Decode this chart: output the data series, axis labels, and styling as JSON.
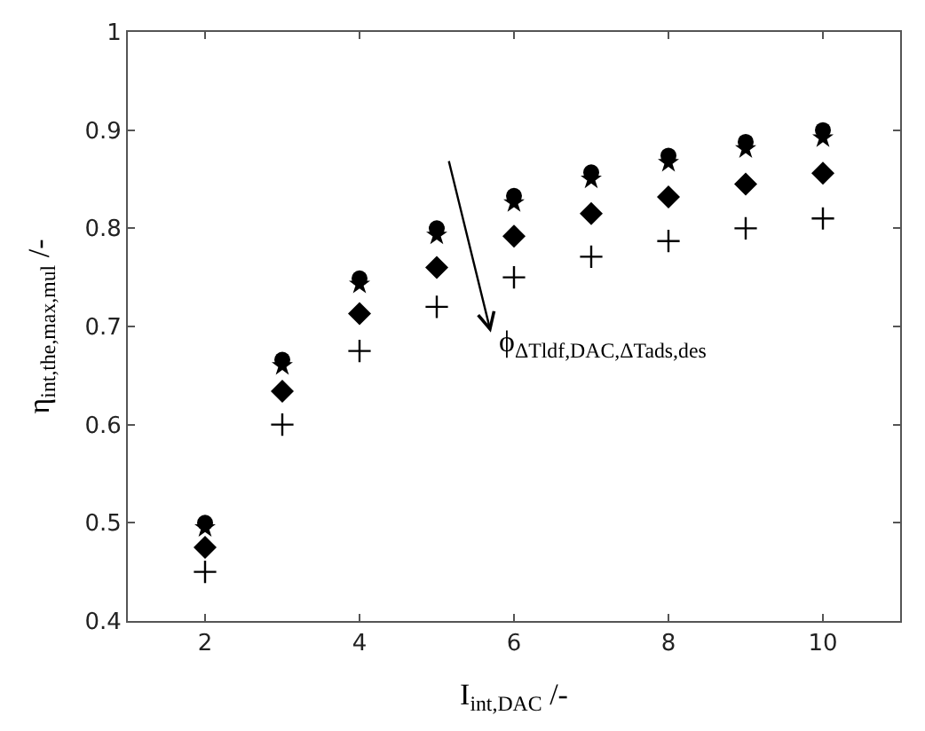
{
  "chart_data": {
    "type": "scatter",
    "xlabel": "I$_{int,DAC}$ /-",
    "ylabel": "η$_{int,the,max,mul}$ /-",
    "x": [
      2,
      3,
      4,
      5,
      6,
      7,
      8,
      9,
      10
    ],
    "xlim": [
      1,
      11
    ],
    "xticks": [
      2,
      4,
      6,
      8,
      10
    ],
    "ylim": [
      0.4,
      1
    ],
    "yticks": [
      0.4,
      0.5,
      0.6,
      0.7,
      0.8,
      0.9,
      1
    ],
    "annotations": [
      "ϕ$_{ΔTldf,DAC,ΔTads,des}$"
    ],
    "series": [
      {
        "color": "#000000",
        "marker": "circle",
        "values": [
          0.5,
          0.666,
          0.749,
          0.8,
          0.833,
          0.857,
          0.874,
          0.888,
          0.9
        ]
      },
      {
        "color": "#000000",
        "marker": "star",
        "values": [
          0.495,
          0.66,
          0.743,
          0.793,
          0.826,
          0.85,
          0.867,
          0.881,
          0.892
        ]
      },
      {
        "color": "#000000",
        "marker": "diamond",
        "values": [
          0.475,
          0.634,
          0.713,
          0.76,
          0.792,
          0.815,
          0.832,
          0.845,
          0.856
        ]
      },
      {
        "color": "#000000",
        "marker": "cross",
        "values": [
          0.45,
          0.6,
          0.675,
          0.72,
          0.75,
          0.771,
          0.787,
          0.8,
          0.81
        ]
      }
    ]
  }
}
